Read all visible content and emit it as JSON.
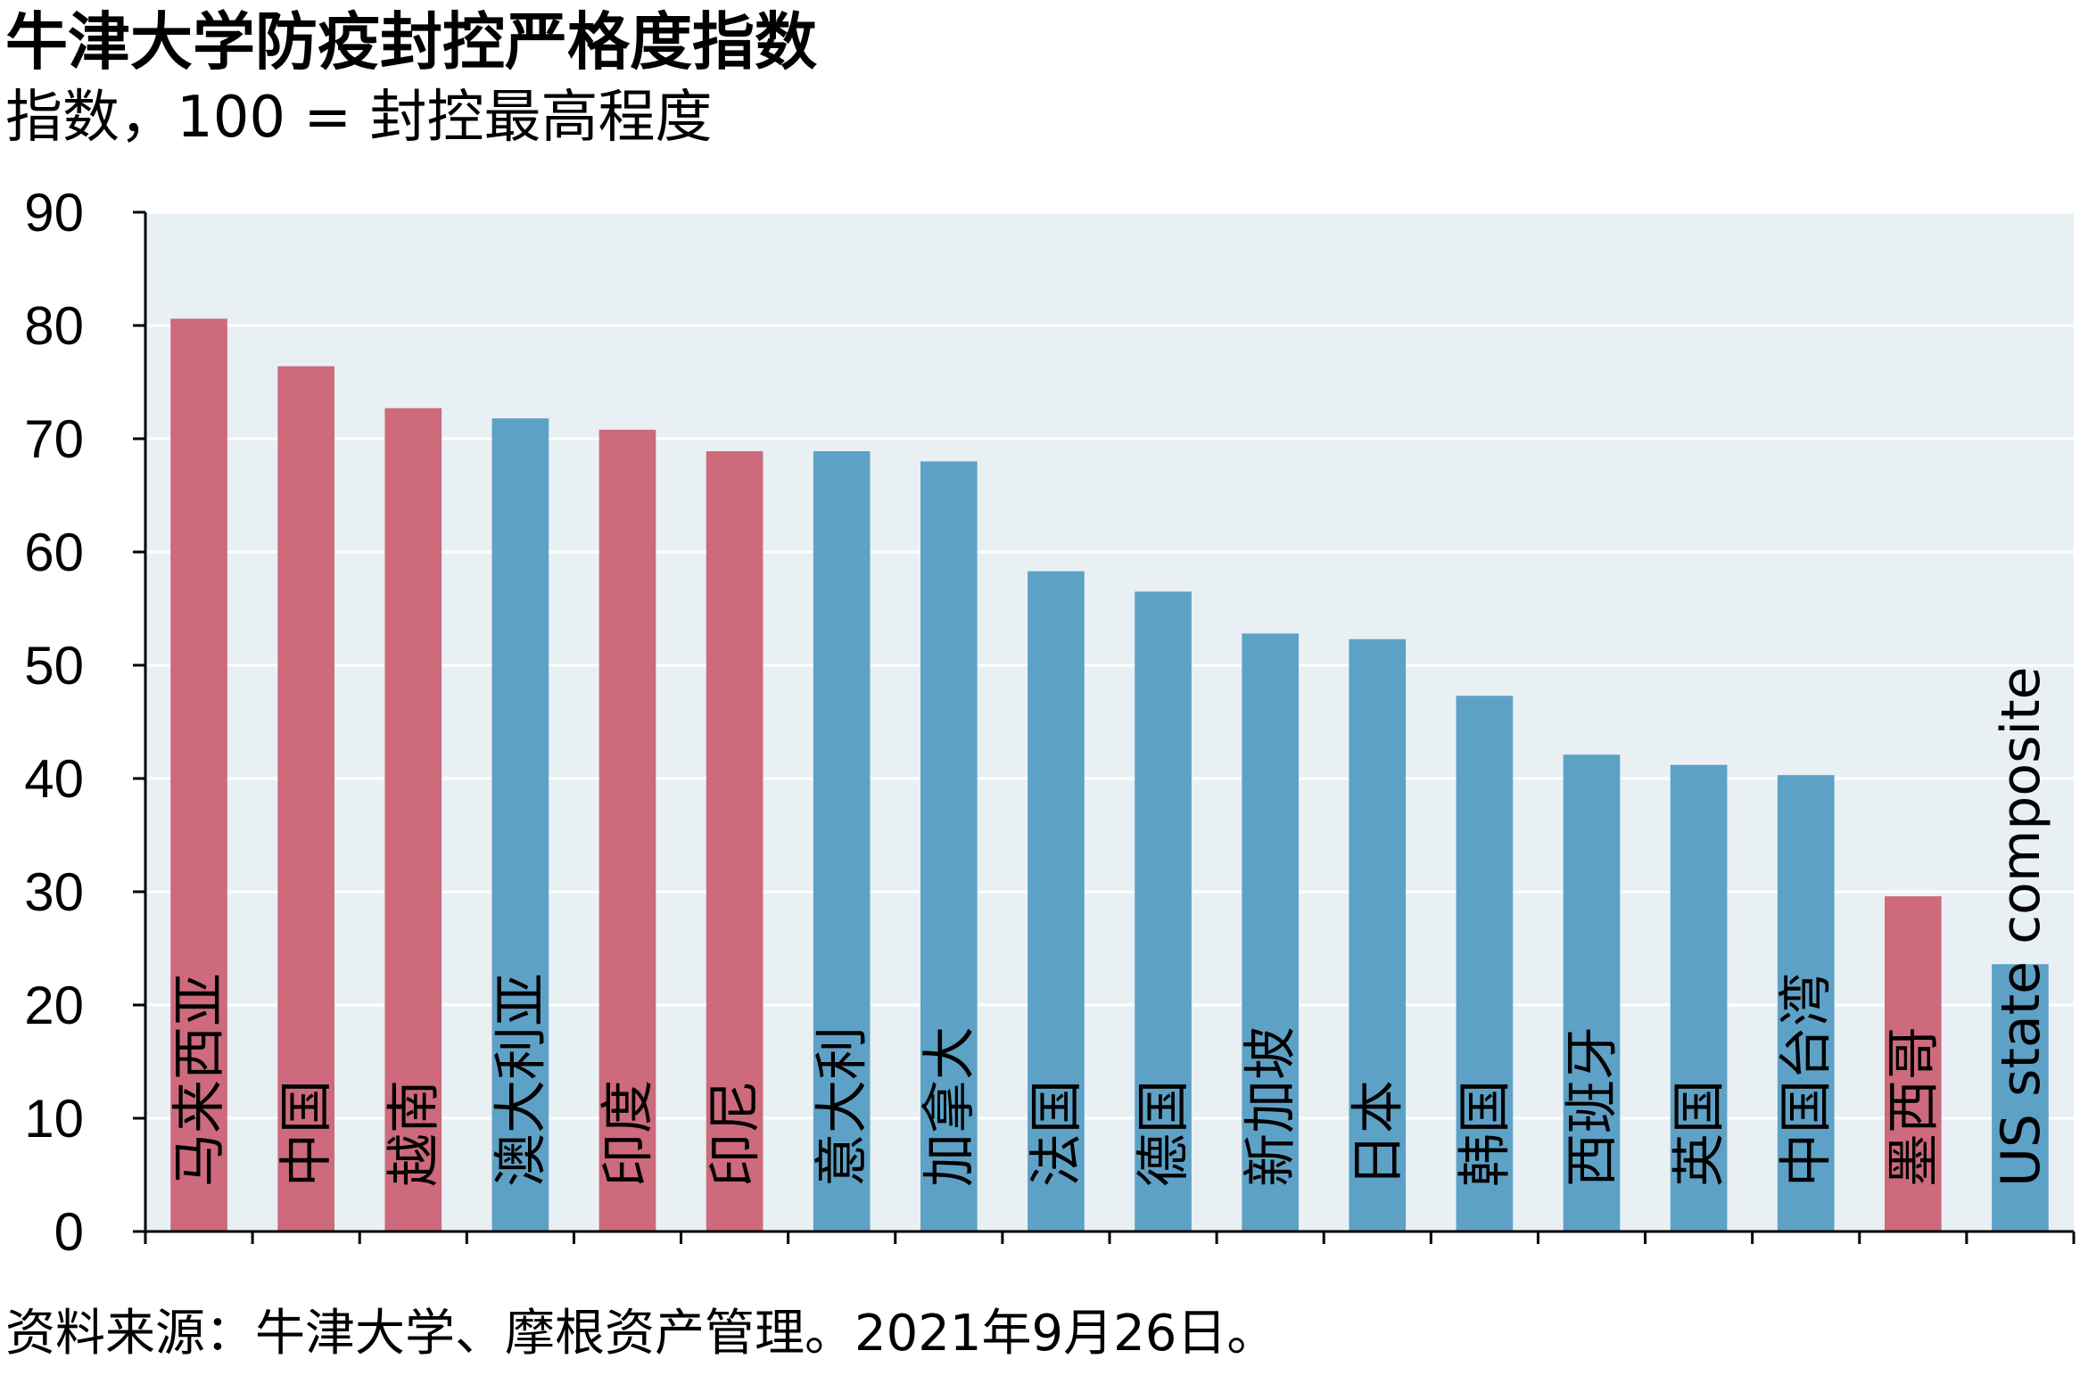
{
  "header": {
    "title": "牛津大学防疫封控严格度指数",
    "subtitle": "指数，100 = 封控最高程度"
  },
  "footer": {
    "source": "资料来源：牛津大学、摩根资产管理。2021年9月26日。"
  },
  "chart_data": {
    "type": "bar",
    "title": "牛津大学防疫封控严格度指数",
    "subtitle": "指数，100 = 封控最高程度",
    "categories": [
      "马来西亚",
      "中国",
      "越南",
      "澳大利亚",
      "印度",
      "印尼",
      "意大利",
      "加拿大",
      "法国",
      "德国",
      "新加坡",
      "日本",
      "韩国",
      "西班牙",
      "英国",
      "中国台湾",
      "墨西哥",
      "US state composite"
    ],
    "values": [
      80.6,
      76.4,
      72.7,
      71.8,
      70.8,
      68.9,
      68.9,
      68.0,
      58.3,
      56.5,
      52.8,
      52.3,
      47.3,
      42.1,
      41.2,
      40.3,
      29.6,
      23.6
    ],
    "bar_colors": [
      "#cd6a7c",
      "#cd6a7c",
      "#cd6a7c",
      "#5ea1c6",
      "#cd6a7c",
      "#cd6a7c",
      "#5ea1c6",
      "#5ea1c6",
      "#5ea1c6",
      "#5ea1c6",
      "#5ea1c6",
      "#5ea1c6",
      "#5ea1c6",
      "#5ea1c6",
      "#5ea1c6",
      "#5ea1c6",
      "#cd6a7c",
      "#5ea1c6"
    ],
    "ylim": [
      0,
      90
    ],
    "yticks": [
      0,
      10,
      20,
      30,
      40,
      50,
      60,
      70,
      80,
      90
    ],
    "xlabel": "",
    "ylabel": "",
    "grid": true,
    "legend": "none",
    "colors": {
      "plot_background": "#e8f0f3",
      "gridline": "#ffffff",
      "emerging": "#cd6a7c",
      "developed": "#5ea1c6"
    }
  }
}
